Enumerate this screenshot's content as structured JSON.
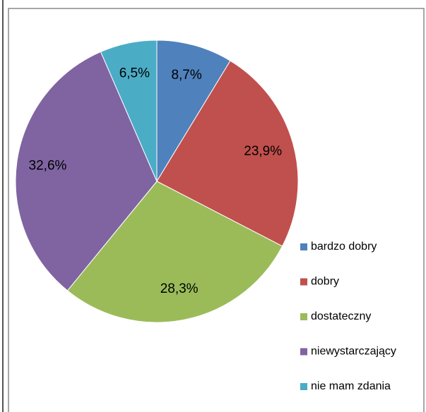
{
  "chart_data": {
    "type": "pie",
    "categories": [
      "bardzo dobry",
      "dobry",
      "dostateczny",
      "niewystarczający",
      "nie mam zdania"
    ],
    "values": [
      8.7,
      23.9,
      28.3,
      32.6,
      6.5
    ],
    "value_labels": [
      "8,7%",
      "23,9%",
      "28,3%",
      "32,6%",
      "6,5%"
    ],
    "colors": [
      "#4f81bd",
      "#c0504d",
      "#9bbb59",
      "#8064a2",
      "#4bacc6"
    ],
    "legend": "right"
  }
}
